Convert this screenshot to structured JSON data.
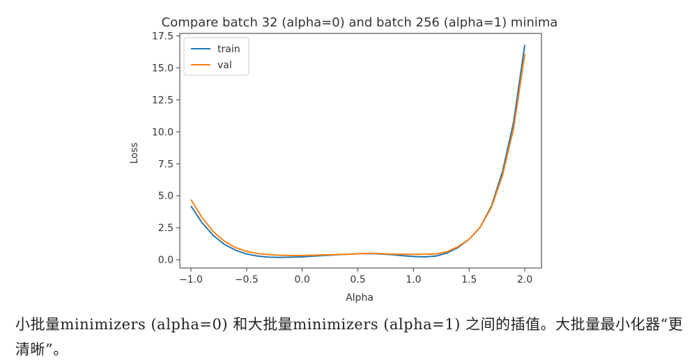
{
  "chart_data": {
    "type": "line",
    "title": "Compare batch 32 (alpha=0) and batch 256 (alpha=1) minima",
    "xlabel": "Alpha",
    "ylabel": "Loss",
    "xlim": [
      -1.1,
      2.15
    ],
    "ylim": [
      -0.65,
      17.7
    ],
    "xticks": [
      -1.0,
      -0.5,
      0.0,
      0.5,
      1.0,
      1.5,
      2.0
    ],
    "xtick_labels": [
      "−1.0",
      "−0.5",
      "0.0",
      "0.5",
      "1.0",
      "1.5",
      "2.0"
    ],
    "yticks": [
      0.0,
      2.5,
      5.0,
      7.5,
      10.0,
      12.5,
      15.0,
      17.5
    ],
    "ytick_labels": [
      "0.0",
      "2.5",
      "5.0",
      "7.5",
      "10.0",
      "12.5",
      "15.0",
      "17.5"
    ],
    "grid": false,
    "legend_position": "top-left",
    "x": [
      -1.0,
      -0.9,
      -0.8,
      -0.7,
      -0.6,
      -0.5,
      -0.4,
      -0.3,
      -0.2,
      -0.1,
      0.0,
      0.1,
      0.2,
      0.3,
      0.4,
      0.5,
      0.6,
      0.7,
      0.8,
      0.9,
      1.0,
      1.1,
      1.2,
      1.3,
      1.4,
      1.5,
      1.6,
      1.7,
      1.8,
      1.9,
      2.0
    ],
    "series": [
      {
        "name": "train",
        "color": "#1f77b4",
        "values": [
          4.2,
          2.9,
          1.9,
          1.2,
          0.75,
          0.45,
          0.28,
          0.2,
          0.18,
          0.2,
          0.22,
          0.28,
          0.33,
          0.38,
          0.43,
          0.47,
          0.48,
          0.45,
          0.4,
          0.32,
          0.25,
          0.22,
          0.28,
          0.52,
          0.95,
          1.6,
          2.55,
          4.2,
          6.9,
          10.8,
          16.8
        ]
      },
      {
        "name": "val",
        "color": "#ff7f0e",
        "values": [
          4.7,
          3.3,
          2.2,
          1.45,
          0.95,
          0.65,
          0.48,
          0.4,
          0.35,
          0.33,
          0.33,
          0.35,
          0.38,
          0.4,
          0.43,
          0.46,
          0.5,
          0.48,
          0.44,
          0.42,
          0.42,
          0.43,
          0.45,
          0.62,
          1.02,
          1.6,
          2.55,
          4.1,
          6.6,
          10.3,
          16.1
        ]
      }
    ]
  },
  "caption": "小批量minimizers (alpha=0) 和大批量minimizers (alpha=1) 之间的插值。大批量最小化器“更清晰”。"
}
